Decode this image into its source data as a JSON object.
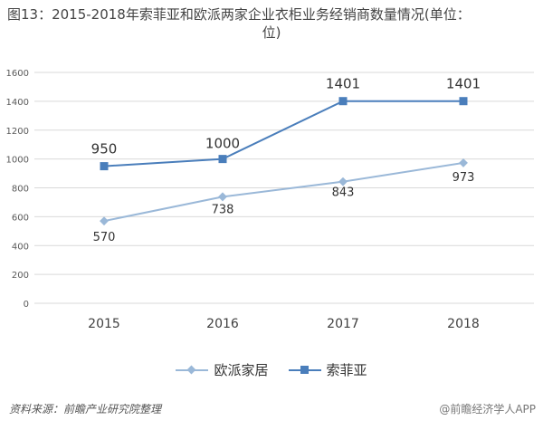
{
  "title": {
    "line1": "图13：2015-2018年索菲亚和欧派两家企业衣柜业务经销商数量情况(单位：",
    "line2": "位)"
  },
  "footer": {
    "source": "资料来源：前瞻产业研究院整理",
    "watermark": "@前瞻经济学人APP"
  },
  "colors": {
    "oupai": "#9ab8d8",
    "sofia": "#4a7ebb",
    "grid": "#d9d9d9",
    "axis_text": "#595959"
  },
  "chart_data": {
    "type": "line",
    "categories": [
      "2015",
      "2016",
      "2017",
      "2018"
    ],
    "ylim": [
      0,
      1600
    ],
    "yticks": [
      0,
      200,
      400,
      600,
      800,
      1000,
      1200,
      1400,
      1600
    ],
    "grid": true,
    "legend": "bottom",
    "series": [
      {
        "name": "欧派家居",
        "marker": "diamond",
        "values": [
          570,
          738,
          843,
          973
        ]
      },
      {
        "name": "索菲亚",
        "marker": "square",
        "values": [
          950,
          1000,
          1401,
          1401
        ]
      }
    ]
  }
}
